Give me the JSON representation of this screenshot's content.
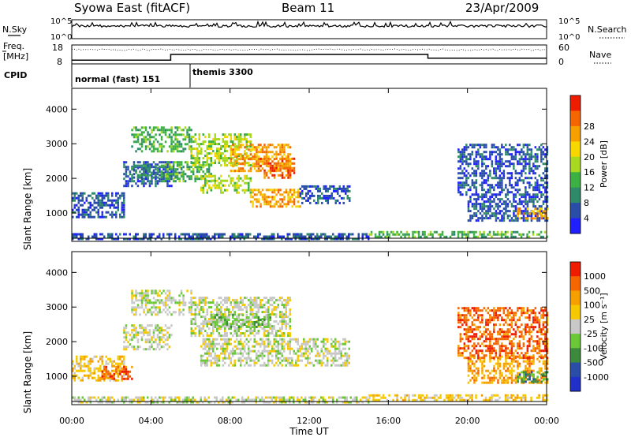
{
  "header": {
    "station": "Syowa East (fitACF)",
    "beam": "Beam 11",
    "date": "23/Apr/2009"
  },
  "params": {
    "nsky_label": "N.Sky",
    "nsky_ticks": [
      "10^5",
      "10^0"
    ],
    "nsearch_label": "N.Search",
    "nsearch_ticks": [
      "10^5",
      "10^0"
    ],
    "freq_label_line1": "Freq.",
    "freq_label_line2": "[MHz]",
    "freq_ticks": [
      "18",
      "8"
    ],
    "nave_label": "Nave",
    "nave_ticks": [
      "60",
      "0"
    ],
    "cpid_label": "CPID",
    "cpid_segments": [
      {
        "label": "normal (fast) 151",
        "start_hour": 0
      },
      {
        "label": "themis 3300",
        "start_hour": 6
      }
    ],
    "freq_steps": [
      {
        "from_hour": 0,
        "to_hour": 5,
        "mhz": 10.0
      },
      {
        "from_hour": 5,
        "to_hour": 18,
        "mhz": 13.0
      },
      {
        "from_hour": 18,
        "to_hour": 24,
        "mhz": 11.0
      }
    ]
  },
  "colors": {
    "power_scale": [
      "#2020ff",
      "#2a4ea8",
      "#2f8a6a",
      "#3cb043",
      "#a8d820",
      "#f6d800",
      "#f6a000",
      "#f56500",
      "#ee1c00"
    ],
    "velocity_scale": [
      "#ee1c00",
      "#f56500",
      "#f6a000",
      "#f6c800",
      "#c8c8c8",
      "#6ac838",
      "#3c8a3c",
      "#2a4ea8",
      "#2030c8"
    ]
  },
  "chart_data": [
    {
      "type": "heatmap",
      "name": "power",
      "title": "",
      "xlabel": "",
      "ylabel": "Slant Range [km]",
      "xlim": [
        0,
        24
      ],
      "ylim": [
        180,
        4600
      ],
      "yticks": [
        1000,
        2000,
        3000,
        4000
      ],
      "x_tick_labels": [
        "00:00",
        "04:00",
        "08:00",
        "12:00",
        "16:00",
        "20:00",
        "00:00"
      ],
      "colorbar_label": "Power [dB]",
      "colorbar_ticks": [
        "4",
        "8",
        "12",
        "16",
        "20",
        "24",
        "28"
      ],
      "regions": [
        {
          "t0": 0.0,
          "t1": 2.6,
          "r0": 900,
          "r1": 1600,
          "level": 1
        },
        {
          "t0": 2.6,
          "t1": 5.0,
          "r0": 1800,
          "r1": 2500,
          "level": 1
        },
        {
          "t0": 3.0,
          "t1": 5.5,
          "r0": 2000,
          "r1": 2400,
          "level": 2
        },
        {
          "t0": 4.5,
          "t1": 7.0,
          "r0": 1900,
          "r1": 2500,
          "level": 3
        },
        {
          "t0": 3.0,
          "t1": 6.0,
          "r0": 2800,
          "r1": 3500,
          "level": 3
        },
        {
          "t0": 6.0,
          "t1": 9.0,
          "r0": 2400,
          "r1": 3300,
          "level": 4
        },
        {
          "t0": 8.0,
          "t1": 11.0,
          "r0": 2200,
          "r1": 3000,
          "level": 6
        },
        {
          "t0": 9.5,
          "t1": 11.2,
          "r0": 2000,
          "r1": 2600,
          "level": 7
        },
        {
          "t0": 6.5,
          "t1": 9.0,
          "r0": 1600,
          "r1": 2100,
          "level": 4
        },
        {
          "t0": 9.0,
          "t1": 11.5,
          "r0": 1200,
          "r1": 1700,
          "level": 6
        },
        {
          "t0": 11.5,
          "t1": 14.0,
          "r0": 1300,
          "r1": 1800,
          "level": 1
        },
        {
          "t0": 0.0,
          "t1": 15.0,
          "r0": 250,
          "r1": 420,
          "level": 1
        },
        {
          "t0": 15.0,
          "t1": 24.0,
          "r0": 300,
          "r1": 480,
          "level": 3
        },
        {
          "t0": 20.0,
          "t1": 24.0,
          "r0": 800,
          "r1": 1500,
          "level": 1
        },
        {
          "t0": 19.5,
          "t1": 24.0,
          "r0": 1500,
          "r1": 3000,
          "level": 1
        },
        {
          "t0": 22.5,
          "t1": 24.0,
          "r0": 850,
          "r1": 1150,
          "level": 6
        }
      ]
    },
    {
      "type": "heatmap",
      "name": "velocity",
      "title": "",
      "xlabel": "Time UT",
      "ylabel": "Slant Range [km]",
      "xlim": [
        0,
        24
      ],
      "ylim": [
        180,
        4600
      ],
      "yticks": [
        1000,
        2000,
        3000,
        4000
      ],
      "x_tick_labels": [
        "00:00",
        "04:00",
        "08:00",
        "12:00",
        "16:00",
        "20:00",
        "00:00"
      ],
      "colorbar_label": "Velocity [m s⁻¹]",
      "colorbar_ticks": [
        "1000",
        "500",
        "100",
        "25",
        "-25",
        "-100",
        "-500",
        "-1000"
      ],
      "regions": [
        {
          "t0": 0.0,
          "t1": 2.6,
          "r0": 900,
          "r1": 1600,
          "level": 3
        },
        {
          "t0": 2.6,
          "t1": 5.0,
          "r0": 1800,
          "r1": 2500,
          "level": 4
        },
        {
          "t0": 3.0,
          "t1": 6.0,
          "r0": 2800,
          "r1": 3500,
          "level": 4
        },
        {
          "t0": 6.0,
          "t1": 11.0,
          "r0": 2200,
          "r1": 3300,
          "level": 4
        },
        {
          "t0": 7.0,
          "t1": 10.0,
          "r0": 2400,
          "r1": 2800,
          "level": 5
        },
        {
          "t0": 6.5,
          "t1": 14.0,
          "r0": 1300,
          "r1": 2100,
          "level": 4
        },
        {
          "t0": 1.5,
          "t1": 3.0,
          "r0": 900,
          "r1": 1300,
          "level": 1
        },
        {
          "t0": 0.0,
          "t1": 15.0,
          "r0": 250,
          "r1": 420,
          "level": 4
        },
        {
          "t0": 15.0,
          "t1": 24.0,
          "r0": 300,
          "r1": 480,
          "level": 3
        },
        {
          "t0": 20.0,
          "t1": 24.0,
          "r0": 800,
          "r1": 1600,
          "level": 2
        },
        {
          "t0": 19.5,
          "t1": 24.0,
          "r0": 1500,
          "r1": 3000,
          "level": 1
        },
        {
          "t0": 22.5,
          "t1": 24.0,
          "r0": 850,
          "r1": 1150,
          "level": 6
        }
      ]
    }
  ]
}
